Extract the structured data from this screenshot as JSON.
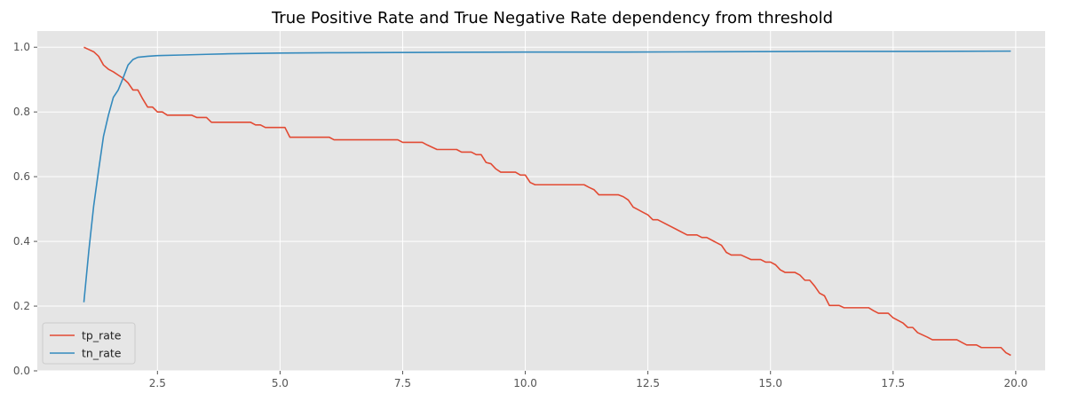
{
  "chart_data": {
    "type": "line",
    "title": "True Positive Rate and True Negative Rate dependency from threshold",
    "xlabel": "",
    "ylabel": "",
    "xlim": [
      0.05,
      20.6
    ],
    "ylim": [
      0.0,
      1.05
    ],
    "xticks": [
      2.5,
      5.0,
      7.5,
      10.0,
      12.5,
      15.0,
      17.5,
      20.0
    ],
    "xtick_labels": [
      "2.5",
      "5.0",
      "7.5",
      "10.0",
      "12.5",
      "15.0",
      "17.5",
      "20.0"
    ],
    "yticks": [
      0.0,
      0.2,
      0.4,
      0.6,
      0.8,
      1.0
    ],
    "ytick_labels": [
      "0.0",
      "0.2",
      "0.4",
      "0.6",
      "0.8",
      "1.0"
    ],
    "grid": true,
    "legend_position": "lower-left",
    "style": "ggplot",
    "series": [
      {
        "name": "tp_rate",
        "color": "#E24A33",
        "points": [
          [
            1.0,
            1.0
          ],
          [
            1.1,
            0.993
          ],
          [
            1.2,
            0.986
          ],
          [
            1.3,
            0.972
          ],
          [
            1.4,
            0.945
          ],
          [
            1.5,
            0.932
          ],
          [
            1.6,
            0.924
          ],
          [
            1.7,
            0.914
          ],
          [
            1.8,
            0.904
          ],
          [
            1.9,
            0.89
          ],
          [
            2.0,
            0.868
          ],
          [
            2.1,
            0.868
          ],
          [
            2.2,
            0.84
          ],
          [
            2.3,
            0.815
          ],
          [
            2.4,
            0.815
          ],
          [
            2.5,
            0.8
          ],
          [
            2.6,
            0.8
          ],
          [
            2.7,
            0.79
          ],
          [
            3.0,
            0.79
          ],
          [
            3.2,
            0.79
          ],
          [
            3.3,
            0.783
          ],
          [
            3.5,
            0.783
          ],
          [
            3.6,
            0.768
          ],
          [
            4.4,
            0.768
          ],
          [
            4.5,
            0.76
          ],
          [
            4.6,
            0.76
          ],
          [
            4.7,
            0.752
          ],
          [
            5.1,
            0.752
          ],
          [
            5.2,
            0.722
          ],
          [
            6.0,
            0.722
          ],
          [
            6.1,
            0.714
          ],
          [
            7.4,
            0.714
          ],
          [
            7.5,
            0.706
          ],
          [
            7.9,
            0.706
          ],
          [
            8.0,
            0.698
          ],
          [
            8.2,
            0.684
          ],
          [
            8.6,
            0.684
          ],
          [
            8.7,
            0.676
          ],
          [
            8.9,
            0.676
          ],
          [
            9.0,
            0.668
          ],
          [
            9.1,
            0.668
          ],
          [
            9.2,
            0.644
          ],
          [
            9.3,
            0.64
          ],
          [
            9.4,
            0.624
          ],
          [
            9.5,
            0.614
          ],
          [
            9.8,
            0.614
          ],
          [
            9.9,
            0.605
          ],
          [
            10.0,
            0.605
          ],
          [
            10.1,
            0.582
          ],
          [
            10.2,
            0.575
          ],
          [
            11.2,
            0.575
          ],
          [
            11.3,
            0.567
          ],
          [
            11.4,
            0.56
          ],
          [
            11.5,
            0.544
          ],
          [
            11.9,
            0.544
          ],
          [
            12.0,
            0.538
          ],
          [
            12.1,
            0.528
          ],
          [
            12.2,
            0.506
          ],
          [
            12.3,
            0.498
          ],
          [
            12.4,
            0.49
          ],
          [
            12.5,
            0.482
          ],
          [
            12.6,
            0.467
          ],
          [
            12.7,
            0.467
          ],
          [
            13.3,
            0.42
          ],
          [
            13.5,
            0.42
          ],
          [
            13.6,
            0.412
          ],
          [
            13.7,
            0.412
          ],
          [
            13.8,
            0.404
          ],
          [
            13.9,
            0.396
          ],
          [
            14.0,
            0.388
          ],
          [
            14.1,
            0.366
          ],
          [
            14.2,
            0.358
          ],
          [
            14.4,
            0.358
          ],
          [
            14.6,
            0.344
          ],
          [
            14.8,
            0.344
          ],
          [
            14.9,
            0.336
          ],
          [
            15.0,
            0.336
          ],
          [
            15.1,
            0.328
          ],
          [
            15.2,
            0.312
          ],
          [
            15.3,
            0.304
          ],
          [
            15.5,
            0.304
          ],
          [
            15.6,
            0.296
          ],
          [
            15.7,
            0.28
          ],
          [
            15.8,
            0.28
          ],
          [
            15.9,
            0.262
          ],
          [
            16.0,
            0.24
          ],
          [
            16.1,
            0.232
          ],
          [
            16.2,
            0.202
          ],
          [
            16.4,
            0.202
          ],
          [
            16.5,
            0.195
          ],
          [
            17.0,
            0.195
          ],
          [
            17.1,
            0.186
          ],
          [
            17.2,
            0.178
          ],
          [
            17.4,
            0.178
          ],
          [
            17.5,
            0.164
          ],
          [
            17.7,
            0.148
          ],
          [
            17.8,
            0.134
          ],
          [
            17.9,
            0.134
          ],
          [
            18.0,
            0.118
          ],
          [
            18.2,
            0.104
          ],
          [
            18.3,
            0.096
          ],
          [
            18.8,
            0.096
          ],
          [
            18.9,
            0.088
          ],
          [
            19.0,
            0.08
          ],
          [
            19.2,
            0.08
          ],
          [
            19.3,
            0.072
          ],
          [
            19.7,
            0.072
          ],
          [
            19.8,
            0.056
          ],
          [
            19.9,
            0.048
          ]
        ]
      },
      {
        "name": "tn_rate",
        "color": "#348ABD",
        "points": [
          [
            1.0,
            0.212
          ],
          [
            1.1,
            0.37
          ],
          [
            1.2,
            0.51
          ],
          [
            1.3,
            0.62
          ],
          [
            1.4,
            0.725
          ],
          [
            1.5,
            0.79
          ],
          [
            1.6,
            0.845
          ],
          [
            1.7,
            0.868
          ],
          [
            1.8,
            0.905
          ],
          [
            1.9,
            0.945
          ],
          [
            2.0,
            0.962
          ],
          [
            2.1,
            0.969
          ],
          [
            2.3,
            0.972
          ],
          [
            2.5,
            0.974
          ],
          [
            3.0,
            0.976
          ],
          [
            3.5,
            0.978
          ],
          [
            4.0,
            0.98
          ],
          [
            5.0,
            0.982
          ],
          [
            6.0,
            0.983
          ],
          [
            8.0,
            0.984
          ],
          [
            10.0,
            0.985
          ],
          [
            12.0,
            0.985
          ],
          [
            14.0,
            0.986
          ],
          [
            16.0,
            0.987
          ],
          [
            18.0,
            0.987
          ],
          [
            19.9,
            0.988
          ]
        ]
      }
    ]
  }
}
